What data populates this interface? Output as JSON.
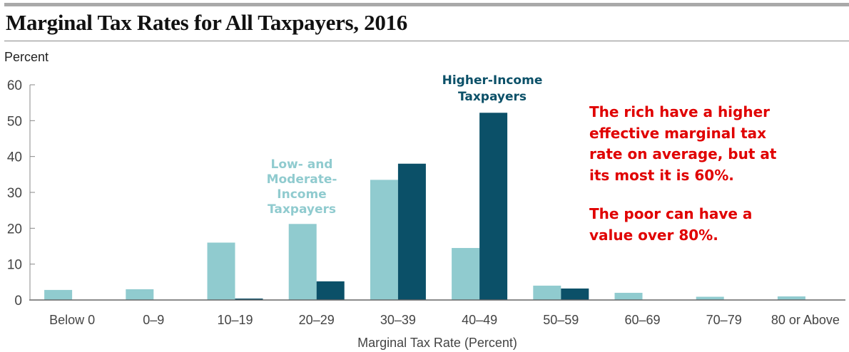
{
  "title": "Marginal Tax Rates for All Taxpayers, 2016",
  "note": {
    "lines1": [
      "The rich have a higher",
      "effective marginal tax",
      "rate on average, but at",
      "its most it is 60%."
    ],
    "lines2": [
      "The poor can have a",
      "value over 80%."
    ]
  },
  "colors": {
    "low": "#90cbcf",
    "high": "#0b5068",
    "axis": "#666666",
    "note": "#e00000"
  },
  "chart_data": {
    "type": "bar",
    "title": "Marginal Tax Rates for All Taxpayers, 2016",
    "ylabel": "Percent",
    "xlabel": "Marginal Tax Rate (Percent)",
    "ylim": [
      0,
      60
    ],
    "yticks": [
      0,
      10,
      20,
      30,
      40,
      50,
      60
    ],
    "grid": false,
    "categories": [
      "Below 0",
      "0–9",
      "10–19",
      "20–29",
      "30–39",
      "40–49",
      "50–59",
      "60–69",
      "70–79",
      "80 or Above"
    ],
    "series": [
      {
        "name": "Low- and Moderate-Income Taxpayers",
        "label_lines": [
          "Low- and",
          "Moderate-",
          "Income",
          "Taxpayers"
        ],
        "color": "#90cbcf",
        "values": [
          2.8,
          3.0,
          16.0,
          21.2,
          33.5,
          14.5,
          4.0,
          2.0,
          0.9,
          1.0
        ]
      },
      {
        "name": "Higher-Income Taxpayers",
        "label_lines": [
          "Higher-Income",
          "Taxpayers"
        ],
        "color": "#0b5068",
        "values": [
          0,
          0,
          0.4,
          5.2,
          38.0,
          52.2,
          3.2,
          0,
          0,
          0
        ]
      }
    ]
  }
}
